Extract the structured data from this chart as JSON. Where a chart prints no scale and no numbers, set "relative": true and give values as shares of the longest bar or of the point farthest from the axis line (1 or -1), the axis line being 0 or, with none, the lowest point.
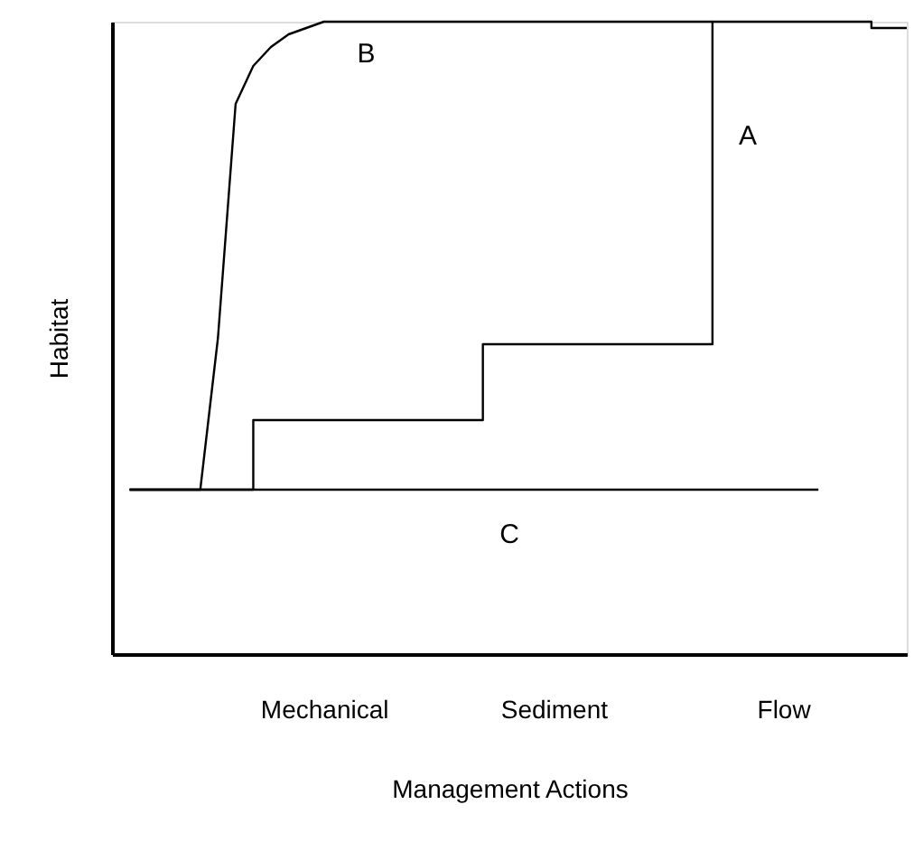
{
  "chart_data": {
    "type": "line",
    "relative": true,
    "xlabel": "Management Actions",
    "ylabel": "Habitat",
    "categories": [
      null,
      null,
      null,
      null,
      null,
      null,
      null,
      null,
      null,
      null,
      null,
      null,
      "Mechanical",
      null,
      null,
      null,
      null,
      null,
      null,
      null,
      null,
      null,
      null,
      null,
      null,
      "Sediment",
      null,
      null,
      null,
      null,
      null,
      null,
      null,
      null,
      null,
      null,
      null,
      null,
      "Flow",
      null,
      null,
      null,
      null,
      null,
      null,
      null
    ],
    "series": [
      {
        "type": "step",
        "color": "#000000",
        "values": [
          null,
          0.26,
          0.26,
          0.26,
          0.26,
          0.26,
          0.26,
          0.26,
          0.37,
          0.37,
          0.37,
          0.37,
          0.37,
          0.37,
          0.37,
          0.37,
          0.37,
          0.37,
          0.37,
          0.37,
          0.37,
          0.49,
          0.49,
          0.49,
          0.49,
          0.49,
          0.49,
          0.49,
          0.49,
          0.49,
          0.49,
          0.49,
          0.49,
          0.49,
          1.0,
          1.0,
          1.0,
          1.0,
          1.0,
          1.0,
          1.0,
          1.0,
          1.0,
          0.99,
          0.99,
          0.99
        ]
      },
      {
        "color": "#000000",
        "values": [
          null,
          0.26,
          0.26,
          0.26,
          0.26,
          0.26,
          0.5,
          0.87,
          0.93,
          0.96,
          0.98,
          0.99,
          1.0,
          1.0,
          1.0,
          1.0,
          1.0,
          1.0,
          1.0,
          1.0,
          1.0,
          1.0,
          1.0,
          1.0,
          1.0,
          1.0,
          1.0,
          1.0,
          1.0,
          1.0,
          1.0,
          1.0,
          1.0,
          1.0,
          1.0,
          null,
          null,
          null,
          null,
          null,
          null,
          null,
          null,
          null,
          null,
          null
        ]
      },
      {
        "color": "#000000",
        "values": [
          null,
          0.26,
          0.26,
          0.26,
          0.26,
          0.26,
          0.26,
          0.26,
          0.26,
          0.26,
          0.26,
          0.26,
          0.26,
          0.26,
          0.26,
          0.26,
          0.26,
          0.26,
          0.26,
          0.26,
          0.26,
          0.26,
          0.26,
          0.26,
          0.26,
          0.26,
          0.26,
          0.26,
          0.26,
          0.26,
          0.26,
          0.26,
          0.26,
          0.26,
          0.26,
          0.26,
          0.26,
          0.26,
          0.26,
          0.26,
          0.26,
          null,
          null,
          null,
          null,
          null
        ]
      }
    ],
    "annotations": [
      "A",
      "B",
      "C"
    ],
    "grid": false,
    "marker": "none",
    "line_style": "solid"
  }
}
